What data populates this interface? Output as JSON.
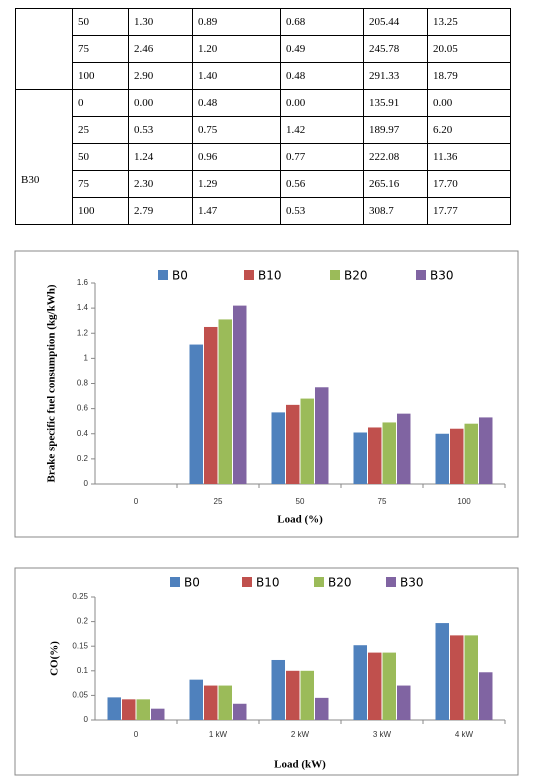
{
  "table": {
    "groups": [
      {
        "rows": [
          [
            "50",
            "1.30",
            "0.89",
            "0.68",
            "205.44",
            "13.25"
          ],
          [
            "75",
            "2.46",
            "1.20",
            "0.49",
            "245.78",
            "20.05"
          ],
          [
            "100",
            "2.90",
            "1.40",
            "0.48",
            "291.33",
            "18.79"
          ]
        ]
      },
      {
        "label": "B30",
        "rows": [
          [
            "0",
            "0.00",
            "0.48",
            "0.00",
            "135.91",
            "0.00"
          ],
          [
            "25",
            "0.53",
            "0.75",
            "1.42",
            "189.97",
            "6.20"
          ],
          [
            "50",
            "1.24",
            "0.96",
            "0.77",
            "222.08",
            "11.36"
          ],
          [
            "75",
            "2.30",
            "1.29",
            "0.56",
            "265.16",
            "17.70"
          ],
          [
            "100",
            "2.79",
            "1.47",
            "0.53",
            "308.7",
            "17.77"
          ]
        ]
      }
    ]
  },
  "chart_data": [
    {
      "type": "bar",
      "x_label": "Load (%)",
      "y_label": "Brake specific fuel consumption (kg/kWh)",
      "categories": [
        "0",
        "25",
        "50",
        "75",
        "100"
      ],
      "series": [
        {
          "name": "B0",
          "color": "#4f81bd",
          "values": [
            0,
            1.11,
            0.57,
            0.41,
            0.4
          ]
        },
        {
          "name": "B10",
          "color": "#c0504d",
          "values": [
            0,
            1.25,
            0.63,
            0.45,
            0.44
          ]
        },
        {
          "name": "B20",
          "color": "#9bbb59",
          "values": [
            0,
            1.31,
            0.68,
            0.49,
            0.48
          ]
        },
        {
          "name": "B30",
          "color": "#8064a2",
          "values": [
            0,
            1.42,
            0.77,
            0.56,
            0.53
          ]
        }
      ],
      "ylim": [
        0,
        1.6
      ],
      "yticks": [
        0,
        0.2,
        0.4,
        0.6,
        0.8,
        1,
        1.2,
        1.4,
        1.6
      ],
      "legend": "top"
    },
    {
      "type": "bar",
      "x_label": "Load (kW)",
      "y_label": "CO(%)",
      "categories": [
        "0",
        "1 kW",
        "2 kW",
        "3 kW",
        "4 kW"
      ],
      "series": [
        {
          "name": "B0",
          "color": "#4f81bd",
          "values": [
            0.046,
            0.082,
            0.122,
            0.152,
            0.197
          ]
        },
        {
          "name": "B10",
          "color": "#c0504d",
          "values": [
            0.042,
            0.07,
            0.1,
            0.137,
            0.172
          ]
        },
        {
          "name": "B20",
          "color": "#9bbb59",
          "values": [
            0.042,
            0.07,
            0.1,
            0.137,
            0.172
          ]
        },
        {
          "name": "B30",
          "color": "#8064a2",
          "values": [
            0.023,
            0.033,
            0.045,
            0.07,
            0.097
          ]
        }
      ],
      "ylim": [
        0,
        0.25
      ],
      "yticks": [
        0,
        0.05,
        0.1,
        0.15,
        0.2,
        0.25
      ],
      "legend": "top"
    }
  ]
}
